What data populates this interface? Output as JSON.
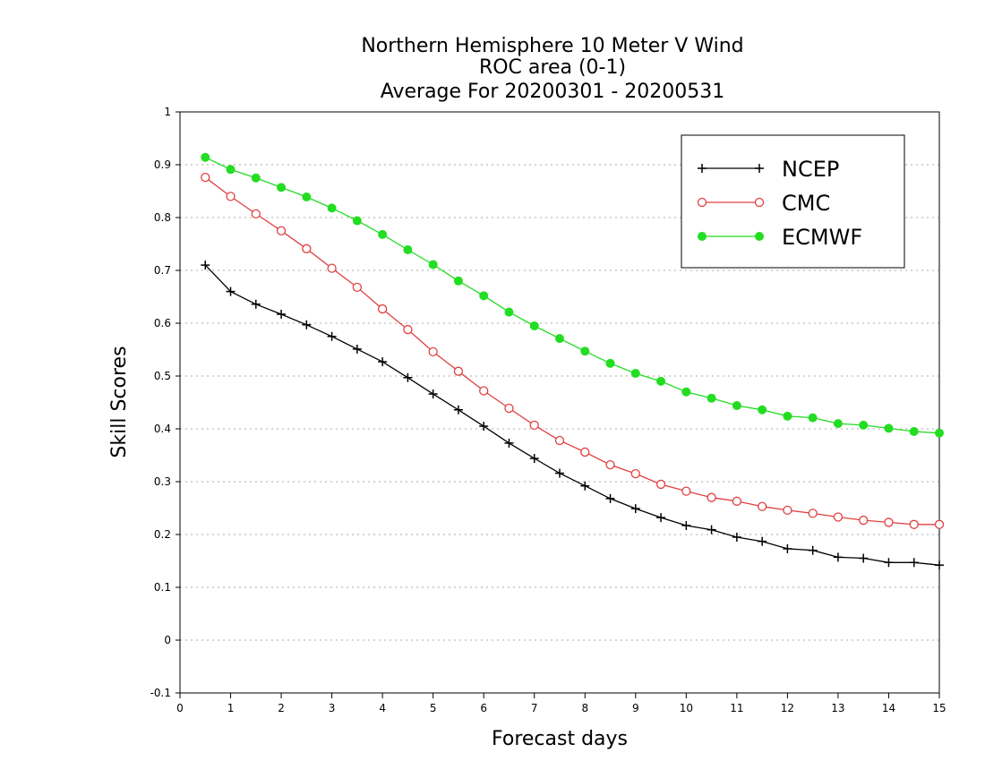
{
  "chart_data": {
    "type": "line",
    "title_lines": [
      "Northern Hemisphere 10 Meter V Wind",
      "ROC area (0-1)",
      "Average For 20200301 - 20200531"
    ],
    "xlabel": "Forecast days",
    "ylabel": "Skill Scores",
    "xlim": [
      0,
      15
    ],
    "ylim": [
      -0.1,
      1
    ],
    "xticks": [
      "0",
      "1",
      "2",
      "3",
      "4",
      "5",
      "6",
      "7",
      "8",
      "9",
      "10",
      "11",
      "12",
      "13",
      "14",
      "15"
    ],
    "yticks": [
      "-0.1",
      "0",
      "0.1",
      "0.2",
      "0.3",
      "0.4",
      "0.5",
      "0.6",
      "0.7",
      "0.8",
      "0.9",
      "1"
    ],
    "grid": "horizontal dotted",
    "legend_position": "top-right",
    "x": [
      0.5,
      1,
      1.5,
      2,
      2.5,
      3,
      3.5,
      4,
      4.5,
      5,
      5.5,
      6,
      6.5,
      7,
      7.5,
      8,
      8.5,
      9,
      9.5,
      10,
      10.5,
      11,
      11.5,
      12,
      12.5,
      13,
      13.5,
      14,
      14.5,
      15
    ],
    "series": [
      {
        "name": "NCEP",
        "color": "#000000",
        "marker": "plus",
        "values": [
          0.71,
          0.66,
          0.636,
          0.617,
          0.597,
          0.575,
          0.551,
          0.527,
          0.497,
          0.466,
          0.436,
          0.405,
          0.373,
          0.344,
          0.316,
          0.292,
          0.268,
          0.249,
          0.232,
          0.217,
          0.209,
          0.195,
          0.187,
          0.173,
          0.17,
          0.157,
          0.155,
          0.147,
          0.147,
          0.142
        ]
      },
      {
        "name": "CMC",
        "color": "#e04040",
        "marker": "open-circle",
        "values": [
          0.876,
          0.84,
          0.807,
          0.775,
          0.741,
          0.704,
          0.668,
          0.627,
          0.588,
          0.546,
          0.509,
          0.472,
          0.439,
          0.407,
          0.378,
          0.356,
          0.332,
          0.315,
          0.295,
          0.282,
          0.27,
          0.263,
          0.253,
          0.246,
          0.24,
          0.233,
          0.227,
          0.223,
          0.219,
          0.219
        ]
      },
      {
        "name": "ECMWF",
        "color": "#22dd22",
        "marker": "filled-circle",
        "values": [
          0.914,
          0.891,
          0.875,
          0.857,
          0.839,
          0.818,
          0.794,
          0.768,
          0.739,
          0.711,
          0.68,
          0.652,
          0.621,
          0.595,
          0.571,
          0.547,
          0.524,
          0.505,
          0.49,
          0.47,
          0.458,
          0.444,
          0.436,
          0.424,
          0.421,
          0.41,
          0.407,
          0.401,
          0.395,
          0.392
        ]
      }
    ]
  }
}
